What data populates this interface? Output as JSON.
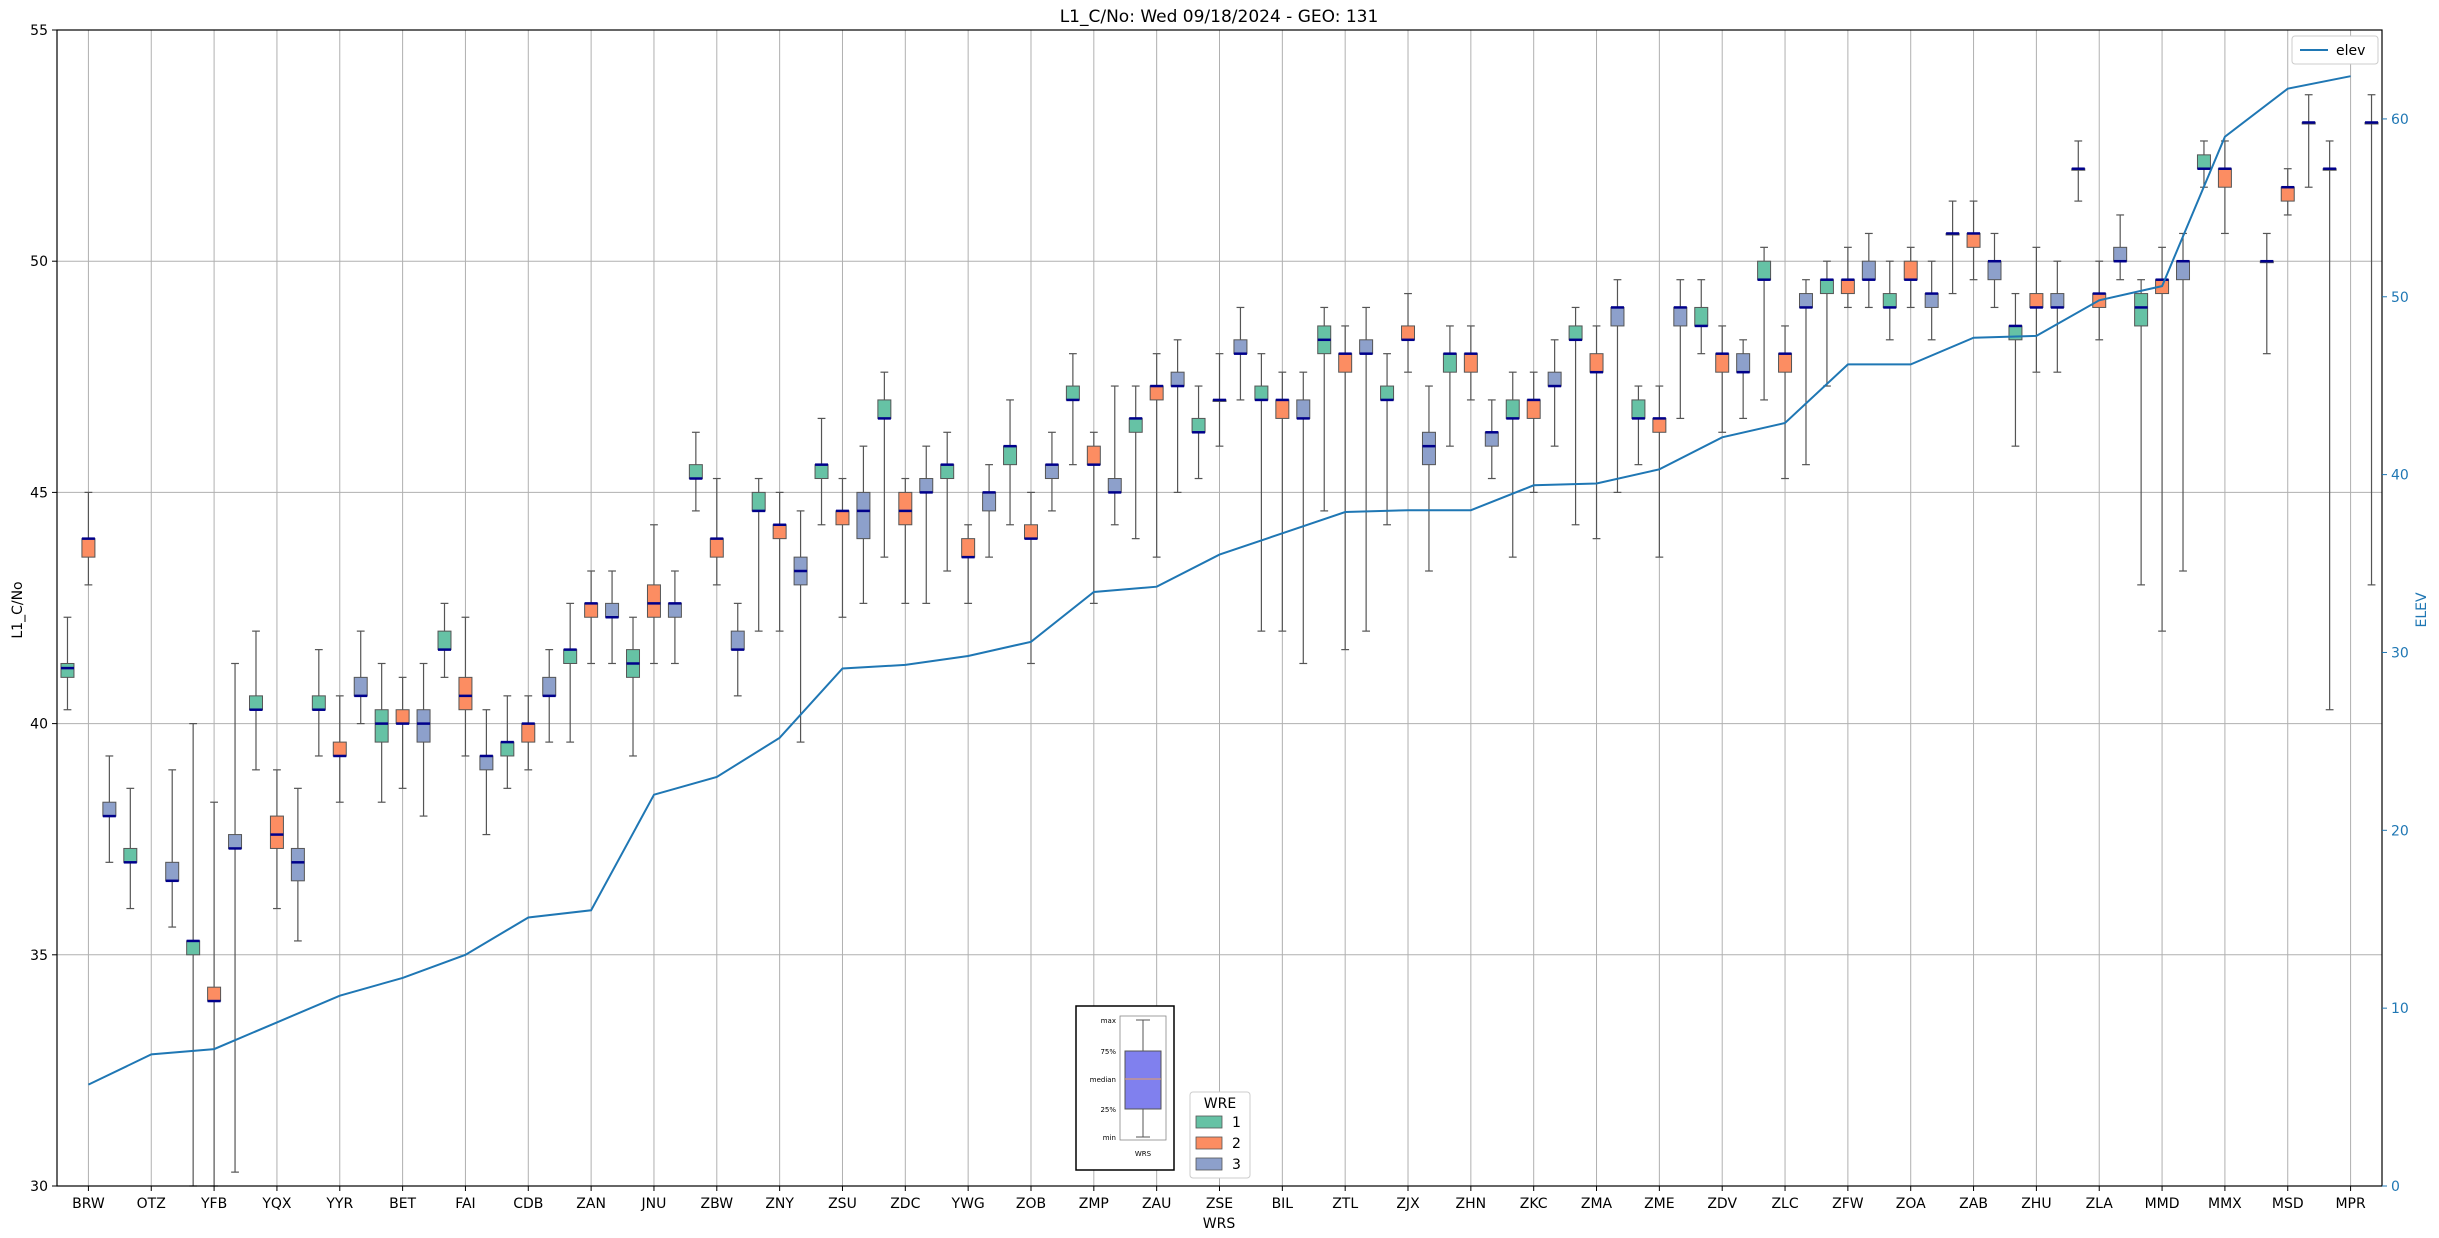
{
  "chart_data": {
    "type": "box",
    "title": "L1_C/No: Wed 09/18/2024 - GEO: 131",
    "xlabel": "WRS",
    "ylabel": "L1_C/No",
    "y2label": "ELEV",
    "ylim": [
      30,
      55
    ],
    "y2lim": [
      0,
      65
    ],
    "yticks": [
      30,
      35,
      40,
      45,
      50,
      55
    ],
    "y2ticks": [
      0,
      10,
      20,
      30,
      40,
      50,
      60
    ],
    "grid": true,
    "categories": [
      "BRW",
      "OTZ",
      "YFB",
      "YQX",
      "YYR",
      "BET",
      "FAI",
      "CDB",
      "ZAN",
      "JNU",
      "ZBW",
      "ZNY",
      "ZSU",
      "ZDC",
      "YWG",
      "ZOB",
      "ZMP",
      "ZAU",
      "ZSE",
      "BIL",
      "ZTL",
      "ZJX",
      "ZHN",
      "ZKC",
      "ZMA",
      "ZME",
      "ZDV",
      "ZLC",
      "ZFW",
      "ZOA",
      "ZAB",
      "ZHU",
      "ZLA",
      "MMD",
      "MMX",
      "MSD",
      "MPR"
    ],
    "series": [
      {
        "name": "1",
        "color": "#66c2a5"
      },
      {
        "name": "2",
        "color": "#fc8d62"
      },
      {
        "name": "3",
        "color": "#8da0cb"
      }
    ],
    "boxes": [
      {
        "cat": "BRW",
        "wre": 1,
        "min": 40.3,
        "q1": 41.0,
        "median": 41.2,
        "q3": 41.3,
        "max": 42.3
      },
      {
        "cat": "BRW",
        "wre": 2,
        "min": 43.0,
        "q1": 43.6,
        "median": 44.0,
        "q3": 44.0,
        "max": 45.0
      },
      {
        "cat": "BRW",
        "wre": 3,
        "min": 37.0,
        "q1": 38.0,
        "median": 38.0,
        "q3": 38.3,
        "max": 39.3
      },
      {
        "cat": "OTZ",
        "wre": 1,
        "min": 36.0,
        "q1": 37.0,
        "median": 37.0,
        "q3": 37.3,
        "max": 38.6
      },
      {
        "cat": "OTZ",
        "wre": 3,
        "min": 35.6,
        "q1": 36.6,
        "median": 36.6,
        "q3": 37.0,
        "max": 39.0
      },
      {
        "cat": "YFB",
        "wre": 1,
        "min": 30.0,
        "q1": 35.0,
        "median": 35.3,
        "q3": 35.3,
        "max": 40.0
      },
      {
        "cat": "YFB",
        "wre": 2,
        "min": 30.0,
        "q1": 34.0,
        "median": 34.0,
        "q3": 34.3,
        "max": 38.3
      },
      {
        "cat": "YFB",
        "wre": 3,
        "min": 30.3,
        "q1": 37.3,
        "median": 37.3,
        "q3": 37.6,
        "max": 41.3
      },
      {
        "cat": "YQX",
        "wre": 1,
        "min": 39.0,
        "q1": 40.3,
        "median": 40.3,
        "q3": 40.6,
        "max": 42.0
      },
      {
        "cat": "YQX",
        "wre": 2,
        "min": 36.0,
        "q1": 37.3,
        "median": 37.6,
        "q3": 38.0,
        "max": 39.0
      },
      {
        "cat": "YQX",
        "wre": 3,
        "min": 35.3,
        "q1": 36.6,
        "median": 37.0,
        "q3": 37.3,
        "max": 38.6
      },
      {
        "cat": "YYR",
        "wre": 1,
        "min": 39.3,
        "q1": 40.3,
        "median": 40.3,
        "q3": 40.6,
        "max": 41.6
      },
      {
        "cat": "YYR",
        "wre": 2,
        "min": 38.3,
        "q1": 39.3,
        "median": 39.3,
        "q3": 39.6,
        "max": 40.6
      },
      {
        "cat": "YYR",
        "wre": 3,
        "min": 40.0,
        "q1": 40.6,
        "median": 40.6,
        "q3": 41.0,
        "max": 42.0
      },
      {
        "cat": "BET",
        "wre": 1,
        "min": 38.3,
        "q1": 39.6,
        "median": 40.0,
        "q3": 40.3,
        "max": 41.3
      },
      {
        "cat": "BET",
        "wre": 2,
        "min": 38.6,
        "q1": 40.0,
        "median": 40.0,
        "q3": 40.3,
        "max": 41.0
      },
      {
        "cat": "BET",
        "wre": 3,
        "min": 38.0,
        "q1": 39.6,
        "median": 40.0,
        "q3": 40.3,
        "max": 41.3
      },
      {
        "cat": "FAI",
        "wre": 1,
        "min": 41.0,
        "q1": 41.6,
        "median": 41.6,
        "q3": 42.0,
        "max": 42.6
      },
      {
        "cat": "FAI",
        "wre": 2,
        "min": 39.3,
        "q1": 40.3,
        "median": 40.6,
        "q3": 41.0,
        "max": 42.3
      },
      {
        "cat": "FAI",
        "wre": 3,
        "min": 37.6,
        "q1": 39.0,
        "median": 39.3,
        "q3": 39.3,
        "max": 40.3
      },
      {
        "cat": "CDB",
        "wre": 1,
        "min": 38.6,
        "q1": 39.3,
        "median": 39.6,
        "q3": 39.6,
        "max": 40.6
      },
      {
        "cat": "CDB",
        "wre": 2,
        "min": 39.0,
        "q1": 39.6,
        "median": 40.0,
        "q3": 40.0,
        "max": 40.6
      },
      {
        "cat": "CDB",
        "wre": 3,
        "min": 39.6,
        "q1": 40.6,
        "median": 40.6,
        "q3": 41.0,
        "max": 41.6
      },
      {
        "cat": "ZAN",
        "wre": 1,
        "min": 39.6,
        "q1": 41.3,
        "median": 41.6,
        "q3": 41.6,
        "max": 42.6
      },
      {
        "cat": "ZAN",
        "wre": 2,
        "min": 41.3,
        "q1": 42.3,
        "median": 42.6,
        "q3": 42.6,
        "max": 43.3
      },
      {
        "cat": "ZAN",
        "wre": 3,
        "min": 41.3,
        "q1": 42.3,
        "median": 42.3,
        "q3": 42.6,
        "max": 43.3
      },
      {
        "cat": "JNU",
        "wre": 1,
        "min": 39.3,
        "q1": 41.0,
        "median": 41.3,
        "q3": 41.6,
        "max": 42.3
      },
      {
        "cat": "JNU",
        "wre": 2,
        "min": 41.3,
        "q1": 42.3,
        "median": 42.6,
        "q3": 43.0,
        "max": 44.3
      },
      {
        "cat": "JNU",
        "wre": 3,
        "min": 41.3,
        "q1": 42.3,
        "median": 42.6,
        "q3": 42.6,
        "max": 43.3
      },
      {
        "cat": "ZBW",
        "wre": 1,
        "min": 44.6,
        "q1": 45.3,
        "median": 45.3,
        "q3": 45.6,
        "max": 46.3
      },
      {
        "cat": "ZBW",
        "wre": 2,
        "min": 43.0,
        "q1": 43.6,
        "median": 44.0,
        "q3": 44.0,
        "max": 45.3
      },
      {
        "cat": "ZBW",
        "wre": 3,
        "min": 40.6,
        "q1": 41.6,
        "median": 41.6,
        "q3": 42.0,
        "max": 42.6
      },
      {
        "cat": "ZNY",
        "wre": 1,
        "min": 42.0,
        "q1": 44.6,
        "median": 44.6,
        "q3": 45.0,
        "max": 45.3
      },
      {
        "cat": "ZNY",
        "wre": 2,
        "min": 42.0,
        "q1": 44.0,
        "median": 44.3,
        "q3": 44.3,
        "max": 45.0
      },
      {
        "cat": "ZNY",
        "wre": 3,
        "min": 39.6,
        "q1": 43.0,
        "median": 43.3,
        "q3": 43.6,
        "max": 44.6
      },
      {
        "cat": "ZSU",
        "wre": 1,
        "min": 44.3,
        "q1": 45.3,
        "median": 45.6,
        "q3": 45.6,
        "max": 46.6
      },
      {
        "cat": "ZSU",
        "wre": 2,
        "min": 42.3,
        "q1": 44.3,
        "median": 44.6,
        "q3": 44.6,
        "max": 45.3
      },
      {
        "cat": "ZSU",
        "wre": 3,
        "min": 42.6,
        "q1": 44.0,
        "median": 44.6,
        "q3": 45.0,
        "max": 46.0
      },
      {
        "cat": "ZDC",
        "wre": 1,
        "min": 43.6,
        "q1": 46.6,
        "median": 46.6,
        "q3": 47.0,
        "max": 47.6
      },
      {
        "cat": "ZDC",
        "wre": 2,
        "min": 42.6,
        "q1": 44.3,
        "median": 44.6,
        "q3": 45.0,
        "max": 45.3
      },
      {
        "cat": "ZDC",
        "wre": 3,
        "min": 42.6,
        "q1": 45.0,
        "median": 45.0,
        "q3": 45.3,
        "max": 46.0
      },
      {
        "cat": "YWG",
        "wre": 1,
        "min": 43.3,
        "q1": 45.3,
        "median": 45.6,
        "q3": 45.6,
        "max": 46.3
      },
      {
        "cat": "YWG",
        "wre": 2,
        "min": 42.6,
        "q1": 43.6,
        "median": 43.6,
        "q3": 44.0,
        "max": 44.3
      },
      {
        "cat": "YWG",
        "wre": 3,
        "min": 43.6,
        "q1": 44.6,
        "median": 45.0,
        "q3": 45.0,
        "max": 45.6
      },
      {
        "cat": "ZOB",
        "wre": 1,
        "min": 44.3,
        "q1": 45.6,
        "median": 46.0,
        "q3": 46.0,
        "max": 47.0
      },
      {
        "cat": "ZOB",
        "wre": 2,
        "min": 41.3,
        "q1": 44.0,
        "median": 44.0,
        "q3": 44.3,
        "max": 45.0
      },
      {
        "cat": "ZOB",
        "wre": 3,
        "min": 44.6,
        "q1": 45.3,
        "median": 45.6,
        "q3": 45.6,
        "max": 46.3
      },
      {
        "cat": "ZMP",
        "wre": 1,
        "min": 45.6,
        "q1": 47.0,
        "median": 47.0,
        "q3": 47.3,
        "max": 48.0
      },
      {
        "cat": "ZMP",
        "wre": 2,
        "min": 42.6,
        "q1": 45.6,
        "median": 45.6,
        "q3": 46.0,
        "max": 46.3
      },
      {
        "cat": "ZMP",
        "wre": 3,
        "min": 44.3,
        "q1": 45.0,
        "median": 45.0,
        "q3": 45.3,
        "max": 47.3
      },
      {
        "cat": "ZAU",
        "wre": 1,
        "min": 44.0,
        "q1": 46.3,
        "median": 46.6,
        "q3": 46.6,
        "max": 47.3
      },
      {
        "cat": "ZAU",
        "wre": 2,
        "min": 43.6,
        "q1": 47.0,
        "median": 47.3,
        "q3": 47.3,
        "max": 48.0
      },
      {
        "cat": "ZAU",
        "wre": 3,
        "min": 45.0,
        "q1": 47.3,
        "median": 47.3,
        "q3": 47.6,
        "max": 48.3
      },
      {
        "cat": "ZSE",
        "wre": 1,
        "min": 45.3,
        "q1": 46.3,
        "median": 46.3,
        "q3": 46.6,
        "max": 47.3
      },
      {
        "cat": "ZSE",
        "wre": 2,
        "min": 46.0,
        "q1": 47.0,
        "median": 47.0,
        "q3": 47.0,
        "max": 48.0
      },
      {
        "cat": "ZSE",
        "wre": 3,
        "min": 47.0,
        "q1": 48.0,
        "median": 48.0,
        "q3": 48.3,
        "max": 49.0
      },
      {
        "cat": "BIL",
        "wre": 1,
        "min": 42.0,
        "q1": 47.0,
        "median": 47.0,
        "q3": 47.3,
        "max": 48.0
      },
      {
        "cat": "BIL",
        "wre": 2,
        "min": 42.0,
        "q1": 46.6,
        "median": 47.0,
        "q3": 47.0,
        "max": 47.6
      },
      {
        "cat": "BIL",
        "wre": 3,
        "min": 41.3,
        "q1": 46.6,
        "median": 46.6,
        "q3": 47.0,
        "max": 47.6
      },
      {
        "cat": "ZTL",
        "wre": 1,
        "min": 44.6,
        "q1": 48.0,
        "median": 48.3,
        "q3": 48.6,
        "max": 49.0
      },
      {
        "cat": "ZTL",
        "wre": 2,
        "min": 41.6,
        "q1": 47.6,
        "median": 48.0,
        "q3": 48.0,
        "max": 48.6
      },
      {
        "cat": "ZTL",
        "wre": 3,
        "min": 42.0,
        "q1": 48.0,
        "median": 48.0,
        "q3": 48.3,
        "max": 49.0
      },
      {
        "cat": "ZJX",
        "wre": 1,
        "min": 44.3,
        "q1": 47.0,
        "median": 47.0,
        "q3": 47.3,
        "max": 48.0
      },
      {
        "cat": "ZJX",
        "wre": 2,
        "min": 47.6,
        "q1": 48.3,
        "median": 48.3,
        "q3": 48.6,
        "max": 49.3
      },
      {
        "cat": "ZJX",
        "wre": 3,
        "min": 43.3,
        "q1": 45.6,
        "median": 46.0,
        "q3": 46.3,
        "max": 47.3
      },
      {
        "cat": "ZHN",
        "wre": 1,
        "min": 46.0,
        "q1": 47.6,
        "median": 48.0,
        "q3": 48.0,
        "max": 48.6
      },
      {
        "cat": "ZHN",
        "wre": 2,
        "min": 47.0,
        "q1": 47.6,
        "median": 48.0,
        "q3": 48.0,
        "max": 48.6
      },
      {
        "cat": "ZHN",
        "wre": 3,
        "min": 45.3,
        "q1": 46.0,
        "median": 46.3,
        "q3": 46.3,
        "max": 47.0
      },
      {
        "cat": "ZKC",
        "wre": 1,
        "min": 43.6,
        "q1": 46.6,
        "median": 46.6,
        "q3": 47.0,
        "max": 47.6
      },
      {
        "cat": "ZKC",
        "wre": 2,
        "min": 45.0,
        "q1": 46.6,
        "median": 47.0,
        "q3": 47.0,
        "max": 47.6
      },
      {
        "cat": "ZKC",
        "wre": 3,
        "min": 46.0,
        "q1": 47.3,
        "median": 47.3,
        "q3": 47.6,
        "max": 48.3
      },
      {
        "cat": "ZMA",
        "wre": 1,
        "min": 44.3,
        "q1": 48.3,
        "median": 48.3,
        "q3": 48.6,
        "max": 49.0
      },
      {
        "cat": "ZMA",
        "wre": 2,
        "min": 44.0,
        "q1": 47.6,
        "median": 47.6,
        "q3": 48.0,
        "max": 48.6
      },
      {
        "cat": "ZMA",
        "wre": 3,
        "min": 45.0,
        "q1": 48.6,
        "median": 49.0,
        "q3": 49.0,
        "max": 49.6
      },
      {
        "cat": "ZME",
        "wre": 1,
        "min": 45.6,
        "q1": 46.6,
        "median": 46.6,
        "q3": 47.0,
        "max": 47.3
      },
      {
        "cat": "ZME",
        "wre": 2,
        "min": 43.6,
        "q1": 46.3,
        "median": 46.6,
        "q3": 46.6,
        "max": 47.3
      },
      {
        "cat": "ZME",
        "wre": 3,
        "min": 46.6,
        "q1": 48.6,
        "median": 49.0,
        "q3": 49.0,
        "max": 49.6
      },
      {
        "cat": "ZDV",
        "wre": 1,
        "min": 48.0,
        "q1": 48.6,
        "median": 48.6,
        "q3": 49.0,
        "max": 49.6
      },
      {
        "cat": "ZDV",
        "wre": 2,
        "min": 46.3,
        "q1": 47.6,
        "median": 48.0,
        "q3": 48.0,
        "max": 48.6
      },
      {
        "cat": "ZDV",
        "wre": 3,
        "min": 46.6,
        "q1": 47.6,
        "median": 47.6,
        "q3": 48.0,
        "max": 48.3
      },
      {
        "cat": "ZLC",
        "wre": 1,
        "min": 47.0,
        "q1": 49.6,
        "median": 49.6,
        "q3": 50.0,
        "max": 50.3
      },
      {
        "cat": "ZLC",
        "wre": 2,
        "min": 45.3,
        "q1": 47.6,
        "median": 48.0,
        "q3": 48.0,
        "max": 48.6
      },
      {
        "cat": "ZLC",
        "wre": 3,
        "min": 45.6,
        "q1": 49.0,
        "median": 49.0,
        "q3": 49.3,
        "max": 49.6
      },
      {
        "cat": "ZFW",
        "wre": 1,
        "min": 47.3,
        "q1": 49.3,
        "median": 49.6,
        "q3": 49.6,
        "max": 50.0
      },
      {
        "cat": "ZFW",
        "wre": 2,
        "min": 49.0,
        "q1": 49.3,
        "median": 49.6,
        "q3": 49.6,
        "max": 50.3
      },
      {
        "cat": "ZFW",
        "wre": 3,
        "min": 49.0,
        "q1": 49.6,
        "median": 49.6,
        "q3": 50.0,
        "max": 50.6
      },
      {
        "cat": "ZOA",
        "wre": 1,
        "min": 48.3,
        "q1": 49.0,
        "median": 49.0,
        "q3": 49.3,
        "max": 50.0
      },
      {
        "cat": "ZOA",
        "wre": 2,
        "min": 49.0,
        "q1": 49.6,
        "median": 49.6,
        "q3": 50.0,
        "max": 50.3
      },
      {
        "cat": "ZOA",
        "wre": 3,
        "min": 48.3,
        "q1": 49.0,
        "median": 49.3,
        "q3": 49.3,
        "max": 50.0
      },
      {
        "cat": "ZAB",
        "wre": 1,
        "min": 49.3,
        "q1": 50.6,
        "median": 50.6,
        "q3": 50.6,
        "max": 51.3
      },
      {
        "cat": "ZAB",
        "wre": 2,
        "min": 49.6,
        "q1": 50.3,
        "median": 50.6,
        "q3": 50.6,
        "max": 51.3
      },
      {
        "cat": "ZAB",
        "wre": 3,
        "min": 49.0,
        "q1": 49.6,
        "median": 50.0,
        "q3": 50.0,
        "max": 50.6
      },
      {
        "cat": "ZHU",
        "wre": 1,
        "min": 46.0,
        "q1": 48.3,
        "median": 48.6,
        "q3": 48.6,
        "max": 49.3
      },
      {
        "cat": "ZHU",
        "wre": 2,
        "min": 47.6,
        "q1": 49.0,
        "median": 49.0,
        "q3": 49.3,
        "max": 50.3
      },
      {
        "cat": "ZHU",
        "wre": 3,
        "min": 47.6,
        "q1": 49.0,
        "median": 49.0,
        "q3": 49.3,
        "max": 50.0
      },
      {
        "cat": "ZLA",
        "wre": 1,
        "min": 51.3,
        "q1": 52.0,
        "median": 52.0,
        "q3": 52.0,
        "max": 52.6
      },
      {
        "cat": "ZLA",
        "wre": 2,
        "min": 48.3,
        "q1": 49.0,
        "median": 49.3,
        "q3": 49.3,
        "max": 50.0
      },
      {
        "cat": "ZLA",
        "wre": 3,
        "min": 49.6,
        "q1": 50.0,
        "median": 50.0,
        "q3": 50.3,
        "max": 51.0
      },
      {
        "cat": "MMD",
        "wre": 1,
        "min": 43.0,
        "q1": 48.6,
        "median": 49.0,
        "q3": 49.3,
        "max": 49.6
      },
      {
        "cat": "MMD",
        "wre": 2,
        "min": 42.0,
        "q1": 49.3,
        "median": 49.6,
        "q3": 49.6,
        "max": 50.3
      },
      {
        "cat": "MMD",
        "wre": 3,
        "min": 43.3,
        "q1": 49.6,
        "median": 50.0,
        "q3": 50.0,
        "max": 50.6
      },
      {
        "cat": "MMX",
        "wre": 1,
        "min": 51.6,
        "q1": 52.0,
        "median": 52.0,
        "q3": 52.3,
        "max": 52.6
      },
      {
        "cat": "MMX",
        "wre": 2,
        "min": 50.6,
        "q1": 51.6,
        "median": 52.0,
        "q3": 52.0,
        "max": 52.6
      },
      {
        "cat": "MSD",
        "wre": 1,
        "min": 48.0,
        "q1": 50.0,
        "median": 50.0,
        "q3": 50.0,
        "max": 50.6
      },
      {
        "cat": "MSD",
        "wre": 2,
        "min": 51.0,
        "q1": 51.3,
        "median": 51.6,
        "q3": 51.6,
        "max": 52.0
      },
      {
        "cat": "MSD",
        "wre": 3,
        "min": 51.6,
        "q1": 53.0,
        "median": 53.0,
        "q3": 53.0,
        "max": 53.6
      },
      {
        "cat": "MPR",
        "wre": 1,
        "min": 40.3,
        "q1": 52.0,
        "median": 52.0,
        "q3": 52.0,
        "max": 52.6
      },
      {
        "cat": "MPR",
        "wre": 3,
        "min": 43.0,
        "q1": 53.0,
        "median": 53.0,
        "q3": 53.0,
        "max": 53.6
      }
    ],
    "elev": {
      "name": "elev",
      "color": "#1f77b4",
      "values": [
        5.7,
        7.4,
        7.7,
        9.2,
        10.7,
        11.7,
        13.0,
        15.1,
        15.5,
        22.0,
        23.0,
        25.2,
        29.1,
        29.3,
        29.8,
        30.6,
        33.4,
        33.7,
        35.5,
        36.7,
        37.9,
        38.0,
        38.0,
        39.4,
        39.5,
        40.3,
        42.1,
        42.9,
        46.2,
        46.2,
        47.7,
        47.8,
        49.8,
        50.6,
        59.0,
        61.7,
        62.4
      ]
    },
    "legend_elev": {
      "label": "elev",
      "position": "top-right"
    },
    "legend_wre": {
      "title": "WRE",
      "labels": [
        "1",
        "2",
        "3"
      ],
      "position": "bottom-center"
    },
    "key_inset": {
      "labels": [
        "max",
        "75%",
        "median",
        "25%",
        "min"
      ],
      "xlabel": "WRS"
    }
  }
}
